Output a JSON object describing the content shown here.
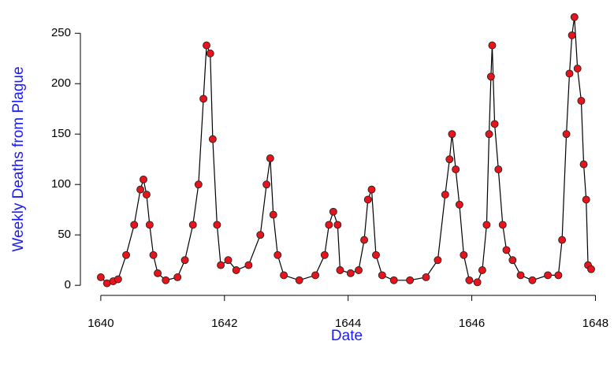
{
  "chart_data": {
    "type": "line",
    "x_label": "Date",
    "y_label": "Weekly Deaths from Plague",
    "x": [
      1640.0,
      1640.1,
      1640.2,
      1640.28,
      1640.41,
      1640.54,
      1640.64,
      1640.69,
      1640.74,
      1640.79,
      1640.85,
      1640.92,
      1641.05,
      1641.24,
      1641.36,
      1641.49,
      1641.58,
      1641.66,
      1641.71,
      1641.77,
      1641.81,
      1641.88,
      1641.94,
      1642.06,
      1642.19,
      1642.39,
      1642.58,
      1642.68,
      1642.74,
      1642.79,
      1642.86,
      1642.96,
      1643.21,
      1643.47,
      1643.62,
      1643.69,
      1643.76,
      1643.83,
      1643.87,
      1644.04,
      1644.17,
      1644.26,
      1644.32,
      1644.38,
      1644.45,
      1644.55,
      1644.74,
      1645.0,
      1645.26,
      1645.45,
      1645.57,
      1645.64,
      1645.68,
      1645.74,
      1645.8,
      1645.87,
      1645.96,
      1646.09,
      1646.17,
      1646.24,
      1646.28,
      1646.31,
      1646.33,
      1646.37,
      1646.43,
      1646.5,
      1646.56,
      1646.66,
      1646.79,
      1646.98,
      1647.23,
      1647.4,
      1647.46,
      1647.53,
      1647.58,
      1647.62,
      1647.66,
      1647.71,
      1647.77,
      1647.81,
      1647.85,
      1647.88,
      1647.93
    ],
    "values": [
      8,
      2,
      4,
      6,
      30,
      60,
      95,
      105,
      90,
      60,
      30,
      12,
      5,
      8,
      25,
      60,
      100,
      185,
      238,
      230,
      145,
      60,
      20,
      25,
      15,
      20,
      50,
      100,
      126,
      70,
      30,
      10,
      5,
      10,
      30,
      60,
      73,
      60,
      15,
      12,
      15,
      45,
      85,
      95,
      30,
      10,
      5,
      5,
      8,
      25,
      90,
      125,
      150,
      115,
      80,
      30,
      5,
      3,
      15,
      60,
      150,
      207,
      238,
      160,
      115,
      60,
      35,
      25,
      10,
      5,
      10,
      10,
      45,
      150,
      210,
      248,
      266,
      215,
      183,
      120,
      85,
      20,
      16
    ],
    "color": "#e8141c",
    "line_color": "#000000",
    "xlim": [
      1639.67,
      1648.3
    ],
    "ylim": [
      -10,
      283
    ],
    "xticks": [
      1640,
      1642,
      1644,
      1646,
      1648
    ],
    "yticks": [
      0,
      50,
      100,
      150,
      200,
      250
    ]
  }
}
